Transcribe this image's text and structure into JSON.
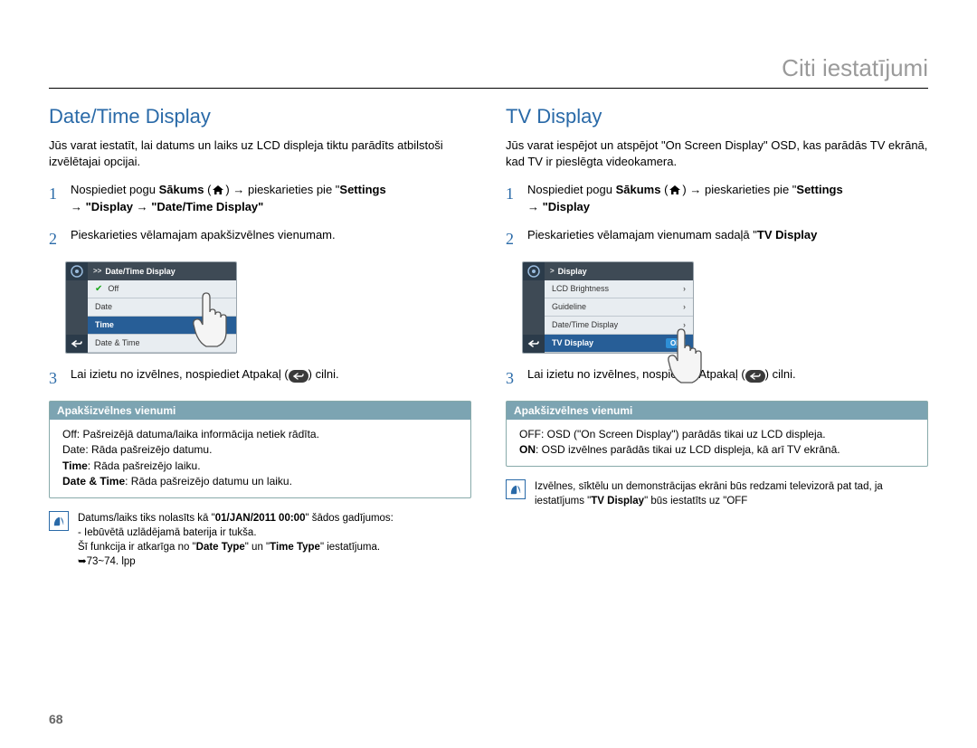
{
  "header": "Citi iestatījumi",
  "page_number": "68",
  "colors": {
    "accent": "#2a6aa8",
    "submenu_header": "#7ca4b2",
    "screenshot_selected": "#275e97",
    "screenshot_bg": "#e8edf1",
    "screenshot_dark": "#3e4a55"
  },
  "left": {
    "title": "Date/Time Display",
    "intro": "Jūs varat iestatīt, lai datums un laiks uz LCD displeja tiktu parādīts atbilstoši izvēlētajai opcijai.",
    "step1_a": "Nospiediet pogu ",
    "step1_b": "Sākums",
    "step1_c": " (",
    "step1_d": ") → pieskarieties pie \"",
    "step1_e": "Settings",
    "step1_f": "→ \"Display  → \"Date/Time Display\"",
    "step2": "Pieskarieties vēlamajam apakšizvēlnes vienumam.",
    "step3_a": "Lai izietu no izvēlnes, nospiediet Atpakaļ (",
    "step3_b": ") cilni.",
    "screenshot": {
      "header": "Date/Time Display",
      "items": [
        "Off",
        "Date",
        "Time",
        "Date & Time"
      ],
      "selected_index": 2,
      "checked_index": 0
    },
    "submenu": {
      "title": "Apakšizvēlnes vienumi",
      "lines_html": "Off: Pašreizējā datuma/laika informācija netiek rādīta.<br>Date: Rāda pašreizējo datumu.<br><b>Time</b>: Rāda pašreizējo laiku.<br><b>Date & Time</b>: Rāda pašreizējo datumu un laiku."
    },
    "note_html": "Datums/laiks tiks nolasīts kā \"<b>01/JAN/2011 00:00</b>\" šādos gadījumos:<br>- Iebūvētā uzlādējamā baterija ir tukša.<br>Šī funkcija ir atkarīga no \"<b>Date Type</b>\" un \"<b>Time Type</b>\" iestatījuma.<br>➥73~74. lpp"
  },
  "right": {
    "title": "TV Display",
    "intro": "Jūs varat iespējot un atspējot \"On Screen Display\" OSD, kas parādās TV ekrānā, kad TV ir pieslēgta videokamera.",
    "step1_a": "Nospiediet pogu ",
    "step1_b": "Sākums",
    "step1_c": " (",
    "step1_d": ") → pieskarieties pie \"",
    "step1_e": "Settings",
    "step1_f": "→ \"Display",
    "step2_a": "Pieskarieties vēlamajam vienumam sadaļā \"",
    "step2_b": "TV Display",
    "step3_a": "Lai izietu no izvēlnes, nospiediet Atpakaļ (",
    "step3_b": ") cilni.",
    "screenshot": {
      "header": "Display",
      "items": [
        "LCD Brightness",
        "Guideline",
        "Date/Time Display",
        "TV Display"
      ],
      "selected_index": 3,
      "on_label": "ON"
    },
    "submenu": {
      "title": "Apakšizvēlnes vienumi",
      "lines_html": "OFF: OSD (\"On Screen Display\") parādās tikai uz LCD displeja.<br><b>ON</b>: OSD izvēlnes parādās tikai uz LCD displeja, kā arī TV ekrānā."
    },
    "note_html": "Izvēlnes, sīktēlu un demonstrācijas ekrāni būs redzami televizorā pat tad, ja iestatījums \"<b>TV Display</b>\" būs iestatīts uz \"OFF"
  }
}
